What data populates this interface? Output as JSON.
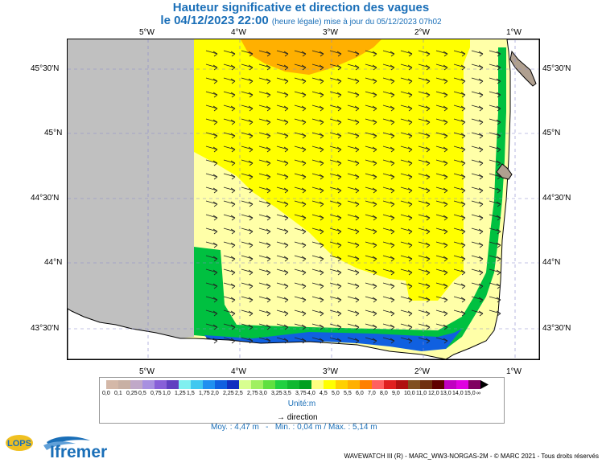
{
  "title": {
    "main": "Hauteur significative et direction des vagues",
    "date": "le 04/12/2023 22:00",
    "subtitle": "(heure légale) mise à jour du 05/12/2023 07h02"
  },
  "axes": {
    "lon_labels": [
      "5°W",
      "4°W",
      "3°W",
      "2°W",
      "1°W"
    ],
    "lat_labels": [
      "45°30'N",
      "45°N",
      "44°30'N",
      "44°N",
      "43°30'N"
    ]
  },
  "legend": {
    "values": [
      "0,0",
      "0,1",
      "0,25",
      "0,5",
      "0,75",
      "1,0",
      "1,25",
      "1,5",
      "1,75",
      "2,0",
      "2,25",
      "2,5",
      "2,75",
      "3,0",
      "3,25",
      "3,5",
      "3,75",
      "4,0",
      "4,5",
      "5,0",
      "5,5",
      "6,0",
      "7,0",
      "8,0",
      "9,0",
      "10,0",
      "11,0",
      "12,0",
      "13,0",
      "14,0",
      "15,0",
      "∞"
    ],
    "colors": [
      "#d4b8a8",
      "#c8b0a4",
      "#c0a8c8",
      "#a890e0",
      "#8860d8",
      "#6040c0",
      "#80f0f0",
      "#40c8f0",
      "#2090f0",
      "#1060e0",
      "#1030c0",
      "#d8ff90",
      "#a0f060",
      "#60e040",
      "#20d040",
      "#10b830",
      "#00a020",
      "#ffff80",
      "#ffff00",
      "#ffd000",
      "#ffb000",
      "#ff8000",
      "#ff6060",
      "#e02020",
      "#b01010",
      "#805020",
      "#703010",
      "#600000",
      "#c000c0",
      "#e000e0",
      "#800060"
    ],
    "unit": "Unité:m",
    "direction_label": "direction"
  },
  "stats": {
    "moy": "Moy. : 4,47 m",
    "min": "Min. : 0,04 m",
    "max": "Max. : 5,14 m"
  },
  "credit": "WAVEWATCH III (R) - MARC_WW3-NORGAS-2M - © MARC 2021 - Tous droits réservés",
  "logos": {
    "lops": "LOPS",
    "ifremer": "Ifremer"
  },
  "map_colors": {
    "land": "#c0c0c0",
    "sea_pale": "#ffffa8",
    "sea_yellow": "#ffff00",
    "sea_orange": "#ffb000",
    "coast_green": "#00c040"
  }
}
